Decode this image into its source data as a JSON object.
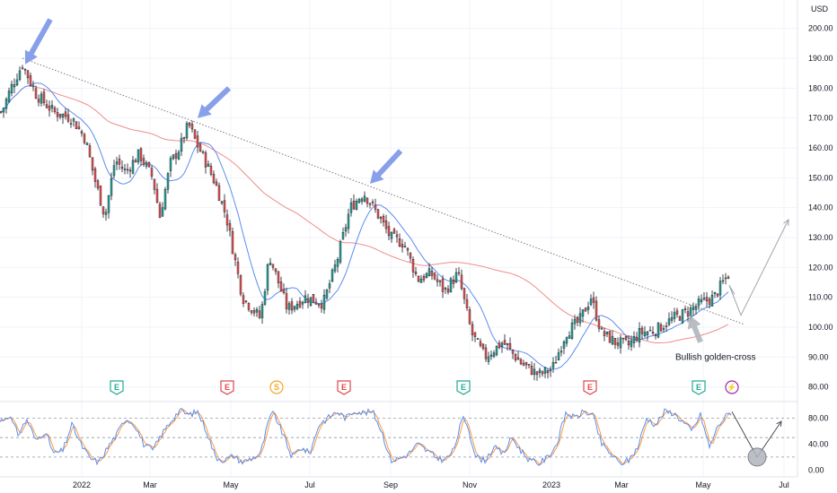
{
  "colors": {
    "up": "#26a69a",
    "down": "#ef5350",
    "wick": "#131722",
    "ma_fast": "#5b8def",
    "ma_slow": "#f08c8c",
    "trendline": "#787b86",
    "arrow_blue": "#7b95e8",
    "arrow_gray": "#b2b5be",
    "stoch_k": "#5b8def",
    "stoch_d": "#ff9a3c",
    "earnings_green": "#22ab94",
    "earnings_red": "#e0474c",
    "split_orange": "#f5a623",
    "special_purple": "#9c27b0",
    "grid": "#f0f3fa",
    "separator": "#e0e3eb"
  },
  "chart_data": [
    {
      "type": "candlestick",
      "title": "",
      "currency_label": "USD",
      "ylim": [
        76,
        208
      ],
      "y_ticks": [
        80,
        90,
        100,
        110,
        120,
        130,
        140,
        150,
        160,
        170,
        180,
        190,
        200
      ],
      "y_tick_labels": [
        "80.00",
        "90.00",
        "100.00",
        "110.00",
        "120.00",
        "130.00",
        "140.00",
        "150.00",
        "160.00",
        "170.00",
        "180.00",
        "190.00",
        "200.00"
      ],
      "x_tick_labels": [
        "2022",
        "Mar",
        "May",
        "Jul",
        "Sep",
        "Nov",
        "2023",
        "Mar",
        "May",
        "Jul"
      ],
      "x_tick_positions": [
        91,
        167,
        257,
        345,
        435,
        523,
        614,
        692,
        783,
        873
      ],
      "close_anchors": [
        [
          2,
          172
        ],
        [
          12,
          180
        ],
        [
          25,
          188
        ],
        [
          40,
          178
        ],
        [
          60,
          172
        ],
        [
          80,
          170
        ],
        [
          95,
          163
        ],
        [
          105,
          150
        ],
        [
          117,
          137
        ],
        [
          128,
          156
        ],
        [
          140,
          152
        ],
        [
          155,
          158
        ],
        [
          170,
          150
        ],
        [
          178,
          137
        ],
        [
          190,
          155
        ],
        [
          200,
          160
        ],
        [
          210,
          168
        ],
        [
          218,
          162
        ],
        [
          228,
          156
        ],
        [
          240,
          148
        ],
        [
          252,
          137
        ],
        [
          258,
          128
        ],
        [
          270,
          110
        ],
        [
          290,
          103
        ],
        [
          300,
          124
        ],
        [
          320,
          106
        ],
        [
          340,
          110
        ],
        [
          360,
          108
        ],
        [
          375,
          122
        ],
        [
          390,
          140
        ],
        [
          405,
          145
        ],
        [
          420,
          138
        ],
        [
          435,
          130
        ],
        [
          450,
          128
        ],
        [
          465,
          116
        ],
        [
          480,
          118
        ],
        [
          495,
          112
        ],
        [
          510,
          118
        ],
        [
          525,
          98
        ],
        [
          540,
          90
        ],
        [
          560,
          95
        ],
        [
          580,
          88
        ],
        [
          600,
          84
        ],
        [
          615,
          86
        ],
        [
          630,
          98
        ],
        [
          645,
          102
        ],
        [
          658,
          110
        ],
        [
          670,
          98
        ],
        [
          685,
          95
        ],
        [
          700,
          94
        ],
        [
          712,
          98
        ],
        [
          730,
          99
        ],
        [
          750,
          103
        ],
        [
          765,
          105
        ],
        [
          780,
          108
        ],
        [
          795,
          110
        ],
        [
          805,
          115
        ],
        [
          812,
          118
        ]
      ],
      "projection_line": [
        [
          812,
          114
        ],
        [
          825,
          104
        ],
        [
          878,
          136
        ]
      ],
      "projection_branch": [
        [
          812,
          114
        ],
        [
          818,
          111
        ]
      ],
      "trendline": [
        [
          25,
          190
        ],
        [
          828,
          101
        ]
      ],
      "ma_fast_name": "",
      "ma_slow_name": "",
      "annotations": [
        {
          "text": "Bullish golden-cross",
          "x": 752,
          "y": 89
        }
      ],
      "callout_arrows": [
        {
          "tip": [
            28,
            188
          ],
          "tail": [
            56,
            203
          ],
          "color": "blue"
        },
        {
          "tip": [
            220,
            170
          ],
          "tail": [
            255,
            180
          ],
          "color": "blue"
        },
        {
          "tip": [
            412,
            148
          ],
          "tail": [
            446,
            159
          ],
          "color": "blue"
        },
        {
          "tip": [
            768,
            104
          ],
          "tail": [
            780,
            95
          ],
          "color": "gray"
        }
      ],
      "event_badges": [
        {
          "label": "E",
          "kind": "earnings",
          "color": "green",
          "x": 130
        },
        {
          "label": "E",
          "kind": "earnings",
          "color": "red",
          "x": 253
        },
        {
          "label": "S",
          "kind": "split",
          "color": "orange",
          "x": 308
        },
        {
          "label": "E",
          "kind": "earnings",
          "color": "red",
          "x": 383
        },
        {
          "label": "E",
          "kind": "earnings",
          "color": "green",
          "x": 516
        },
        {
          "label": "E",
          "kind": "earnings",
          "color": "red",
          "x": 657
        },
        {
          "label": "E",
          "kind": "earnings",
          "color": "green",
          "x": 778
        },
        {
          "label": "⚡",
          "kind": "special",
          "color": "purple",
          "x": 815
        }
      ]
    },
    {
      "type": "line",
      "title": "",
      "ylim": [
        -5,
        100
      ],
      "y_ticks": [
        0,
        40,
        80
      ],
      "y_tick_labels": [
        "0.00",
        "40.00",
        "80.00"
      ],
      "levels": [
        20,
        50,
        80
      ],
      "k_anchors": [
        [
          0,
          75
        ],
        [
          10,
          85
        ],
        [
          20,
          55
        ],
        [
          30,
          78
        ],
        [
          40,
          45
        ],
        [
          50,
          60
        ],
        [
          60,
          25
        ],
        [
          70,
          30
        ],
        [
          80,
          70
        ],
        [
          90,
          40
        ],
        [
          100,
          18
        ],
        [
          110,
          12
        ],
        [
          120,
          35
        ],
        [
          130,
          55
        ],
        [
          140,
          80
        ],
        [
          150,
          70
        ],
        [
          160,
          40
        ],
        [
          170,
          30
        ],
        [
          180,
          55
        ],
        [
          190,
          75
        ],
        [
          200,
          92
        ],
        [
          210,
          85
        ],
        [
          220,
          90
        ],
        [
          230,
          60
        ],
        [
          240,
          20
        ],
        [
          250,
          15
        ],
        [
          260,
          22
        ],
        [
          270,
          12
        ],
        [
          280,
          18
        ],
        [
          290,
          25
        ],
        [
          300,
          80
        ],
        [
          305,
          88
        ],
        [
          315,
          55
        ],
        [
          325,
          20
        ],
        [
          335,
          35
        ],
        [
          345,
          25
        ],
        [
          355,
          70
        ],
        [
          365,
          80
        ],
        [
          375,
          90
        ],
        [
          385,
          80
        ],
        [
          395,
          92
        ],
        [
          405,
          88
        ],
        [
          415,
          90
        ],
        [
          425,
          60
        ],
        [
          435,
          15
        ],
        [
          445,
          18
        ],
        [
          455,
          25
        ],
        [
          465,
          40
        ],
        [
          475,
          30
        ],
        [
          485,
          20
        ],
        [
          495,
          15
        ],
        [
          505,
          30
        ],
        [
          515,
          80
        ],
        [
          520,
          72
        ],
        [
          530,
          20
        ],
        [
          540,
          15
        ],
        [
          550,
          35
        ],
        [
          560,
          25
        ],
        [
          570,
          50
        ],
        [
          580,
          30
        ],
        [
          590,
          15
        ],
        [
          600,
          10
        ],
        [
          610,
          20
        ],
        [
          620,
          40
        ],
        [
          630,
          88
        ],
        [
          640,
          80
        ],
        [
          650,
          90
        ],
        [
          660,
          85
        ],
        [
          670,
          40
        ],
        [
          680,
          25
        ],
        [
          690,
          10
        ],
        [
          700,
          15
        ],
        [
          710,
          35
        ],
        [
          720,
          80
        ],
        [
          730,
          70
        ],
        [
          740,
          90
        ],
        [
          750,
          88
        ],
        [
          760,
          75
        ],
        [
          770,
          60
        ],
        [
          780,
          85
        ],
        [
          790,
          35
        ],
        [
          800,
          70
        ],
        [
          810,
          85
        ],
        [
          815,
          90
        ]
      ],
      "projection": [
        [
          815,
          90
        ],
        [
          843,
          20
        ],
        [
          870,
          75
        ]
      ],
      "projection_circle": {
        "x": 843,
        "y": 20
      }
    }
  ]
}
